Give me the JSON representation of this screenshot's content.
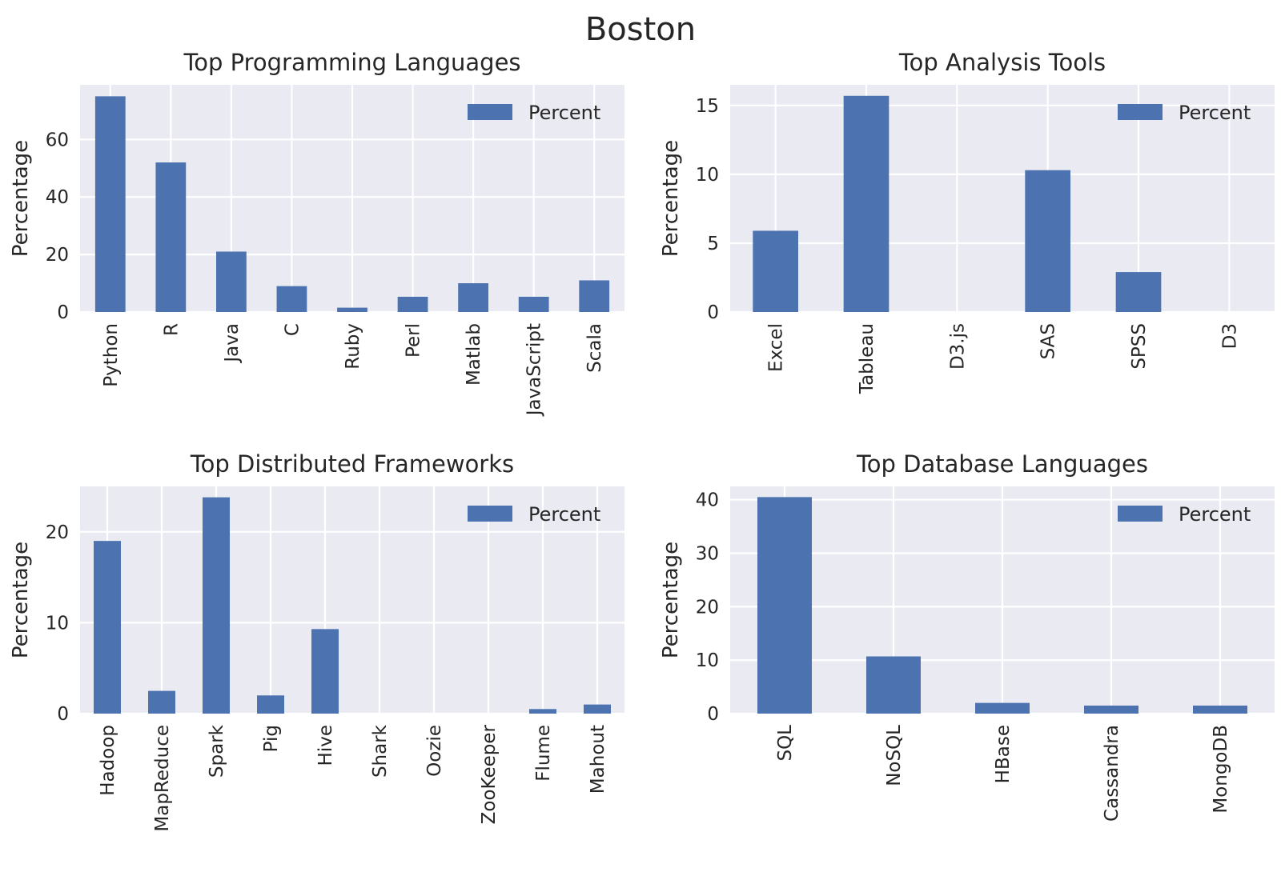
{
  "figure_title": "Boston",
  "colors": {
    "bar": "#4c72b0",
    "panel_bg": "#eaeaf2",
    "grid": "#ffffff",
    "text": "#262626"
  },
  "chart_data": [
    {
      "type": "bar",
      "title": "Top Programming Languages",
      "ylabel": "Percentage",
      "xlabel": "",
      "categories": [
        "Python",
        "R",
        "Java",
        "C",
        "Ruby",
        "Perl",
        "Matlab",
        "JavaScript",
        "Scala"
      ],
      "series": [
        {
          "name": "Percent",
          "values": [
            75,
            52,
            21,
            9,
            1.5,
            5.3,
            10,
            5.3,
            11
          ]
        }
      ],
      "ylim": [
        0,
        79
      ],
      "yticks": [
        0,
        20,
        40,
        60
      ],
      "grid": true,
      "legend": "top-right"
    },
    {
      "type": "bar",
      "title": "Top Analysis Tools",
      "ylabel": "Percentage",
      "xlabel": "",
      "categories": [
        "Excel",
        "Tableau",
        "D3.js",
        "SAS",
        "SPSS",
        "D3"
      ],
      "series": [
        {
          "name": "Percent",
          "values": [
            5.9,
            15.7,
            0,
            10.3,
            2.9,
            0
          ]
        }
      ],
      "ylim": [
        0,
        16.5
      ],
      "yticks": [
        0,
        5,
        10,
        15
      ],
      "grid": true,
      "legend": "top-right"
    },
    {
      "type": "bar",
      "title": "Top Distributed Frameworks",
      "ylabel": "Percentage",
      "xlabel": "",
      "categories": [
        "Hadoop",
        "MapReduce",
        "Spark",
        "Pig",
        "Hive",
        "Shark",
        "Oozie",
        "ZooKeeper",
        "Flume",
        "Mahout"
      ],
      "series": [
        {
          "name": "Percent",
          "values": [
            19,
            2.5,
            23.8,
            2,
            9.3,
            0,
            0,
            0,
            0.5,
            1
          ]
        }
      ],
      "ylim": [
        0,
        25
      ],
      "yticks": [
        0,
        10,
        20
      ],
      "grid": true,
      "legend": "top-right"
    },
    {
      "type": "bar",
      "title": "Top Database Languages",
      "ylabel": "Percentage",
      "xlabel": "",
      "categories": [
        "SQL",
        "NoSQL",
        "HBase",
        "Cassandra",
        "MongoDB"
      ],
      "series": [
        {
          "name": "Percent",
          "values": [
            40.5,
            10.7,
            2,
            1.5,
            1.5
          ]
        }
      ],
      "ylim": [
        0,
        42.5
      ],
      "yticks": [
        0,
        10,
        20,
        30,
        40
      ],
      "grid": true,
      "legend": "top-right"
    }
  ]
}
